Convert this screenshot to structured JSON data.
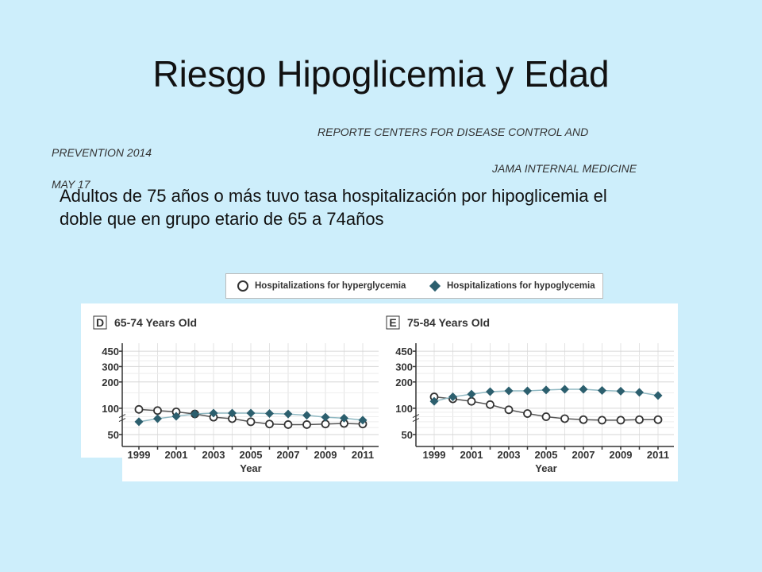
{
  "slide": {
    "title": "Riesgo Hipoglicemia y Edad",
    "source_line1": "REPORTE CENTERS FOR DISEASE CONTROL AND",
    "source_line2": "PREVENTION 2014",
    "source_line3": "JAMA INTERNAL MEDICINE",
    "source_line4": "MAY 17",
    "summary": "Adultos de 75 años o más tuvo tasa hospitalización por hipoglicemia el doble que en grupo etario de 65 a 74años",
    "background_color": "#cdeefb"
  },
  "legend": {
    "items": [
      {
        "label": "Hospitalizations for hyperglycemia",
        "marker": "open-circle"
      },
      {
        "label": "Hospitalizations for hypoglycemia",
        "marker": "filled-diamond"
      }
    ]
  },
  "chart_data": [
    {
      "type": "line",
      "panel_letter": "D",
      "title": "65-74 Years Old",
      "xlabel": "Year",
      "ylabel": "",
      "y_scale": "log",
      "ylim": [
        45,
        470
      ],
      "y_ticks": [
        450,
        300,
        200,
        100,
        50
      ],
      "x_ticks": [
        1999,
        2001,
        2003,
        2005,
        2007,
        2009,
        2011
      ],
      "grid": true,
      "x": [
        1999,
        2000,
        2001,
        2002,
        2003,
        2004,
        2005,
        2006,
        2007,
        2008,
        2009,
        2010,
        2011
      ],
      "series": [
        {
          "name": "Hospitalizations for hyperglycemia",
          "marker": "circle",
          "color": "#333333",
          "values": [
            97,
            94,
            91,
            86,
            79,
            76,
            70,
            66,
            65,
            65,
            66,
            67,
            66
          ]
        },
        {
          "name": "Hospitalizations for hypoglycemia",
          "marker": "diamond",
          "color": "#2c5f6e",
          "values": [
            70,
            76,
            81,
            86,
            88,
            88,
            88,
            87,
            86,
            83,
            79,
            77,
            73
          ]
        }
      ]
    },
    {
      "type": "line",
      "panel_letter": "E",
      "title": "75-84 Years Old",
      "xlabel": "Year",
      "ylabel": "",
      "y_scale": "log",
      "ylim": [
        45,
        470
      ],
      "y_ticks": [
        450,
        300,
        200,
        100,
        50
      ],
      "x_ticks": [
        1999,
        2001,
        2003,
        2005,
        2007,
        2009,
        2011
      ],
      "grid": true,
      "x": [
        1999,
        2000,
        2001,
        2002,
        2003,
        2004,
        2005,
        2006,
        2007,
        2008,
        2009,
        2010,
        2011
      ],
      "series": [
        {
          "name": "Hospitalizations for hyperglycemia",
          "marker": "circle",
          "color": "#333333",
          "values": [
            135,
            128,
            120,
            110,
            96,
            87,
            80,
            76,
            74,
            73,
            73,
            74,
            74
          ]
        },
        {
          "name": "Hospitalizations for hypoglycemia",
          "marker": "diamond",
          "color": "#2c5f6e",
          "values": [
            120,
            135,
            145,
            155,
            158,
            158,
            162,
            165,
            165,
            160,
            157,
            152,
            140
          ]
        }
      ]
    }
  ]
}
